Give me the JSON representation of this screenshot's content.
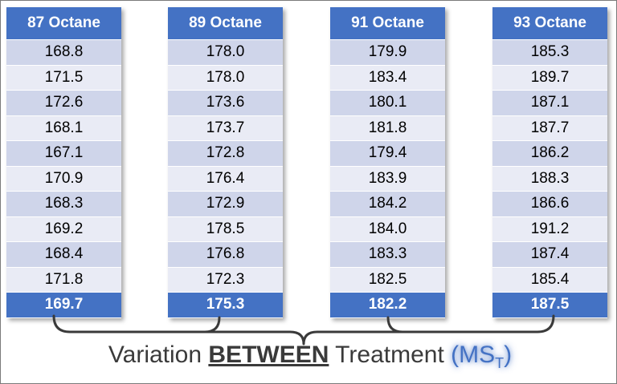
{
  "columns": [
    {
      "header": "87 Octane",
      "values": [
        "168.8",
        "171.5",
        "172.6",
        "168.1",
        "167.1",
        "170.9",
        "168.3",
        "169.2",
        "168.4",
        "171.8"
      ],
      "mean": "169.7"
    },
    {
      "header": "89 Octane",
      "values": [
        "178.0",
        "178.0",
        "173.6",
        "173.7",
        "172.8",
        "176.4",
        "172.9",
        "178.5",
        "176.8",
        "172.3"
      ],
      "mean": "175.3"
    },
    {
      "header": "91 Octane",
      "values": [
        "179.9",
        "183.4",
        "180.1",
        "181.8",
        "179.4",
        "183.9",
        "184.2",
        "184.0",
        "183.3",
        "182.5"
      ],
      "mean": "182.2"
    },
    {
      "header": "93 Octane",
      "values": [
        "185.3",
        "189.7",
        "187.1",
        "187.7",
        "186.2",
        "188.3",
        "186.6",
        "191.2",
        "187.4",
        "185.4"
      ],
      "mean": "187.5"
    }
  ],
  "caption": {
    "prefix": "Variation ",
    "emphasis": "BETWEEN",
    "middle": " Treatment ",
    "paren_open": "(",
    "ms": "MS",
    "ms_sub": "T",
    "paren_close": ")"
  },
  "colors": {
    "header_blue": "#4472c4",
    "row_dark": "#cfd5ea",
    "row_light": "#e9ebf5",
    "caption_text": "#3a3a3a"
  }
}
